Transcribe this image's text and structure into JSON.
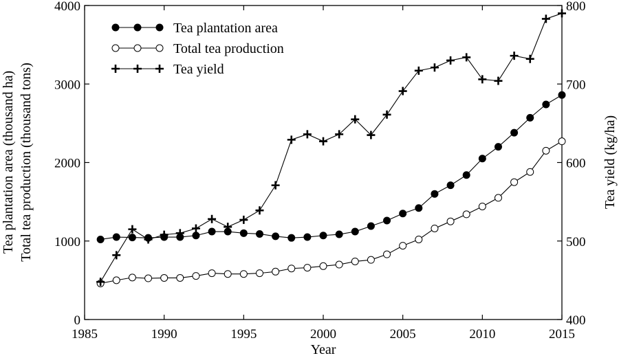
{
  "chart_data": {
    "type": "line",
    "xlabel": "Year",
    "ylabel_left": [
      "Tea plantation area (thousand ha)",
      "Total tea production (thousand tons)"
    ],
    "ylabel_right": "Tea yield (kg/ha)",
    "xlim": [
      1985,
      2015
    ],
    "ylim_left": [
      0,
      4000
    ],
    "ylim_right": [
      400,
      800
    ],
    "x_ticks": [
      1985,
      1990,
      1995,
      2000,
      2005,
      2010,
      2015
    ],
    "y_left_ticks": [
      0,
      1000,
      2000,
      3000,
      4000
    ],
    "y_right_ticks": [
      400,
      500,
      600,
      700,
      800
    ],
    "legend_position": "top-left",
    "grid": false,
    "x": [
      1986,
      1987,
      1988,
      1989,
      1990,
      1991,
      1992,
      1993,
      1994,
      1995,
      1996,
      1997,
      1998,
      1999,
      2000,
      2001,
      2002,
      2003,
      2004,
      2005,
      2006,
      2007,
      2008,
      2009,
      2010,
      2011,
      2012,
      2013,
      2014,
      2015
    ],
    "series": [
      {
        "name": "Tea plantation area",
        "axis": "left",
        "marker": "filled-circle",
        "values": [
          1020,
          1050,
          1045,
          1040,
          1050,
          1050,
          1070,
          1120,
          1120,
          1100,
          1090,
          1060,
          1040,
          1050,
          1070,
          1085,
          1120,
          1190,
          1260,
          1350,
          1420,
          1600,
          1710,
          1840,
          2050,
          2200,
          2380,
          2570,
          2740,
          2860
        ]
      },
      {
        "name": "Total tea production",
        "axis": "left",
        "marker": "open-circle",
        "values": [
          460,
          500,
          535,
          525,
          530,
          530,
          555,
          590,
          580,
          580,
          590,
          610,
          650,
          660,
          680,
          700,
          740,
          760,
          830,
          940,
          1020,
          1160,
          1250,
          1340,
          1440,
          1550,
          1750,
          1880,
          2150,
          2270
        ]
      },
      {
        "name": "Tea yield",
        "axis": "right",
        "marker": "plus",
        "values": [
          448,
          482,
          515,
          502,
          508,
          510,
          516,
          528,
          518,
          527,
          539,
          571,
          629,
          636,
          627,
          636,
          655,
          635,
          661,
          691,
          717,
          721,
          730,
          734,
          706,
          704,
          736,
          732,
          783,
          790
        ]
      }
    ]
  }
}
